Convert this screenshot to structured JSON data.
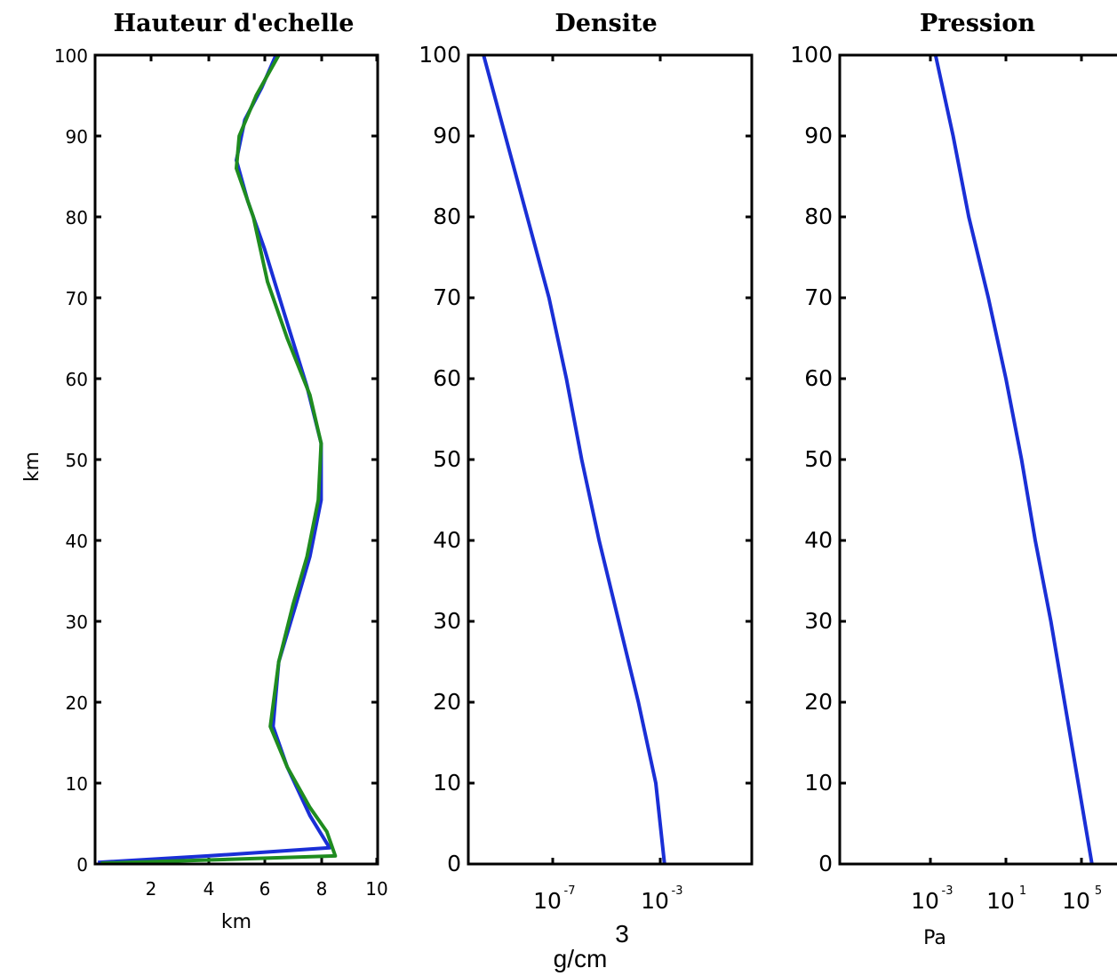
{
  "chart_data": [
    {
      "type": "line",
      "title": "Hauteur d'echelle",
      "xlabel": "km",
      "ylabel": "km",
      "xlim": [
        0,
        10
      ],
      "ylim": [
        0,
        100
      ],
      "x_ticks": [
        "2",
        "4",
        "6",
        "8",
        "10"
      ],
      "y_ticks": [
        "0",
        "10",
        "20",
        "30",
        "40",
        "50",
        "60",
        "70",
        "80",
        "90",
        "100"
      ],
      "series": [
        {
          "color": "#1a2fd6",
          "points": [
            [
              0.1,
              0.2
            ],
            [
              4,
              1.0
            ],
            [
              8.3,
              2
            ],
            [
              7.6,
              6
            ],
            [
              6.8,
              12
            ],
            [
              6.3,
              17
            ],
            [
              6.5,
              25
            ],
            [
              7.1,
              32
            ],
            [
              7.6,
              38
            ],
            [
              8.0,
              45
            ],
            [
              8.0,
              52
            ],
            [
              7.5,
              59
            ],
            [
              6.7,
              68
            ],
            [
              6.0,
              76
            ],
            [
              5.4,
              82
            ],
            [
              5.0,
              87
            ],
            [
              5.3,
              92
            ],
            [
              5.9,
              96
            ],
            [
              6.4,
              100
            ]
          ]
        },
        {
          "color": "#1f8c1f",
          "points": [
            [
              0.2,
              0.1
            ],
            [
              4,
              0.5
            ],
            [
              8.5,
              1
            ],
            [
              8.2,
              4
            ],
            [
              7.6,
              7
            ],
            [
              6.8,
              12
            ],
            [
              6.2,
              17
            ],
            [
              6.5,
              25
            ],
            [
              7.0,
              32
            ],
            [
              7.5,
              38
            ],
            [
              7.9,
              45
            ],
            [
              8.0,
              52
            ],
            [
              7.6,
              58
            ],
            [
              6.8,
              65
            ],
            [
              6.1,
              72
            ],
            [
              5.6,
              80
            ],
            [
              5.0,
              86
            ],
            [
              5.1,
              90
            ],
            [
              5.7,
              95
            ],
            [
              6.5,
              100
            ]
          ]
        }
      ]
    },
    {
      "type": "line",
      "title": "Densite",
      "xlabel": "g/cm",
      "xlabel_sup": "3",
      "xscale": "log",
      "xlim_exp": [
        -12,
        1
      ],
      "ylim": [
        0,
        100
      ],
      "x_ticks": [
        {
          "base": "10",
          "exp": "-7"
        },
        {
          "base": "10",
          "exp": "-3"
        }
      ],
      "y_ticks": [
        "0",
        "10",
        "20",
        "30",
        "40",
        "50",
        "60",
        "70",
        "80",
        "90",
        "100"
      ],
      "series": [
        {
          "color": "#1a2fd6",
          "points": [
            [
              -11.3,
              100
            ],
            [
              -10.3,
              90
            ],
            [
              -9.3,
              80
            ],
            [
              -8.3,
              70
            ],
            [
              -7.5,
              60
            ],
            [
              -6.8,
              50
            ],
            [
              -6.0,
              40
            ],
            [
              -5.1,
              30
            ],
            [
              -4.2,
              20
            ],
            [
              -3.4,
              10
            ],
            [
              -3.0,
              0
            ]
          ]
        }
      ]
    },
    {
      "type": "line",
      "title": "Pression",
      "xlabel": "Pa",
      "xscale": "log",
      "xlim_exp": [
        -8,
        7
      ],
      "ylim": [
        0,
        100
      ],
      "x_ticks": [
        {
          "base": "10",
          "exp": "-3"
        },
        {
          "base": "10",
          "exp": "1"
        },
        {
          "base": "10",
          "exp": "5"
        }
      ],
      "y_ticks": [
        "0",
        "10",
        "20",
        "30",
        "40",
        "50",
        "60",
        "70",
        "80",
        "90",
        "100"
      ],
      "series": [
        {
          "color": "#1a2fd6",
          "points": [
            [
              -3.1,
              100
            ],
            [
              -2.2,
              90
            ],
            [
              -1.4,
              80
            ],
            [
              -0.4,
              70
            ],
            [
              0.5,
              60
            ],
            [
              1.3,
              50
            ],
            [
              2.0,
              40
            ],
            [
              2.8,
              30
            ],
            [
              3.5,
              20
            ],
            [
              4.2,
              10
            ],
            [
              4.9,
              0
            ]
          ]
        }
      ]
    }
  ]
}
